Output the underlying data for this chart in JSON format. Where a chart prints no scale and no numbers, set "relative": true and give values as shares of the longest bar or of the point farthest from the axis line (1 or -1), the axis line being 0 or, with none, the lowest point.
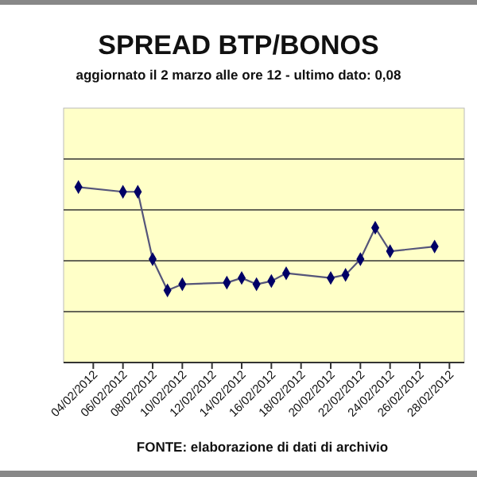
{
  "chart_data": {
    "type": "line",
    "title": "SPREAD BTP/BONOS",
    "subtitle": "aggiornato il 2 marzo alle ore 12 - ultimo dato: 0,08",
    "annotations": [
      "FONTE: elaborazione di dati di archivio"
    ],
    "relative": true,
    "grid": true,
    "marker": "diamond",
    "line_style": "solid",
    "xlim": [
      "2012-02-02",
      "2012-02-29"
    ],
    "xticks": [
      {
        "value": "2012-02-04",
        "label": "04/02/2012"
      },
      {
        "value": "2012-02-06",
        "label": "06/02/2012"
      },
      {
        "value": "2012-02-08",
        "label": "08/02/2012"
      },
      {
        "value": "2012-02-10",
        "label": "10/02/2012"
      },
      {
        "value": "2012-02-12",
        "label": "12/02/2012"
      },
      {
        "value": "2012-02-14",
        "label": "14/02/2012"
      },
      {
        "value": "2012-02-16",
        "label": "16/02/2012"
      },
      {
        "value": "2012-02-18",
        "label": "18/02/2012"
      },
      {
        "value": "2012-02-20",
        "label": "20/02/2012"
      },
      {
        "value": "2012-02-22",
        "label": "22/02/2012"
      },
      {
        "value": "2012-02-24",
        "label": "24/02/2012"
      },
      {
        "value": "2012-02-26",
        "label": "26/02/2012"
      },
      {
        "value": "2012-02-28",
        "label": "28/02/2012"
      }
    ],
    "x": [
      "2012-02-03",
      "2012-02-06",
      "2012-02-07",
      "2012-02-08",
      "2012-02-09",
      "2012-02-10",
      "2012-02-13",
      "2012-02-14",
      "2012-02-15",
      "2012-02-16",
      "2012-02-17",
      "2012-02-20",
      "2012-02-21",
      "2012-02-22",
      "2012-02-23",
      "2012-02-24",
      "2012-02-27"
    ],
    "series": [
      {
        "color": "#000066",
        "values": [
          1.0,
          0.973,
          0.973,
          0.589,
          0.411,
          0.446,
          0.455,
          0.482,
          0.446,
          0.464,
          0.509,
          0.482,
          0.5,
          0.589,
          0.768,
          0.634,
          0.661
        ]
      }
    ]
  }
}
